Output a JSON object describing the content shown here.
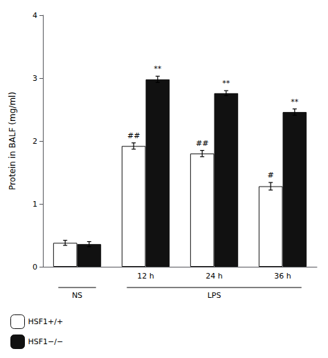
{
  "chart_data": {
    "type": "bar",
    "categories": [
      null,
      "12 h",
      "24 h",
      "36 h"
    ],
    "series": [
      {
        "name": "HSF1+/+",
        "color": "#ffffff",
        "values": [
          0.38,
          1.92,
          1.8,
          1.28
        ],
        "errors": [
          0.04,
          0.05,
          0.05,
          0.06
        ],
        "annotations": [
          null,
          "##",
          "##",
          "#"
        ]
      },
      {
        "name": "HSF1−/−",
        "color": "#111111",
        "values": [
          0.36,
          2.98,
          2.76,
          2.46
        ],
        "errors": [
          0.04,
          0.05,
          0.04,
          0.05
        ],
        "annotations": [
          null,
          "**",
          "**",
          "**"
        ]
      }
    ],
    "ylabel": "Protein in BALF (mg/ml)",
    "ylim": [
      0,
      4.0
    ],
    "yticks": [
      0,
      1,
      2,
      3,
      4
    ],
    "grid": false,
    "legend": "lower left",
    "brackets": [
      {
        "text": "NS",
        "first": 0,
        "last": 0
      },
      {
        "text": "LPS",
        "first": 1,
        "last": 3
      }
    ]
  }
}
